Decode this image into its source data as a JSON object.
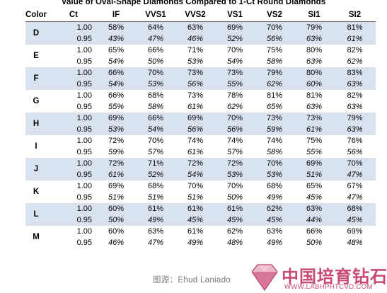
{
  "title": "Value of Oval-Shape Diamonds Compared to 1-Ct Round Diamonds",
  "headers": [
    "Color",
    "Ct",
    "IF",
    "VVS1",
    "VVS2",
    "VS1",
    "VS2",
    "SI1",
    "SI2"
  ],
  "rows": [
    {
      "color": "D",
      "a": {
        "ct": "1.00",
        "vals": [
          "58%",
          "64%",
          "63%",
          "69%",
          "70%",
          "79%",
          "81%"
        ]
      },
      "b": {
        "ct": "0.95",
        "vals": [
          "43%",
          "47%",
          "46%",
          "52%",
          "56%",
          "63%",
          "61%"
        ]
      }
    },
    {
      "color": "E",
      "a": {
        "ct": "1.00",
        "vals": [
          "65%",
          "66%",
          "71%",
          "70%",
          "75%",
          "80%",
          "82%"
        ]
      },
      "b": {
        "ct": "0.95",
        "vals": [
          "54%",
          "50%",
          "53%",
          "54%",
          "58%",
          "63%",
          "62%"
        ]
      }
    },
    {
      "color": "F",
      "a": {
        "ct": "1.00",
        "vals": [
          "66%",
          "70%",
          "73%",
          "73%",
          "79%",
          "80%",
          "83%"
        ]
      },
      "b": {
        "ct": "0.95",
        "vals": [
          "54%",
          "53%",
          "56%",
          "55%",
          "62%",
          "60%",
          "63%"
        ]
      }
    },
    {
      "color": "G",
      "a": {
        "ct": "1.00",
        "vals": [
          "66%",
          "68%",
          "73%",
          "78%",
          "81%",
          "81%",
          "82%"
        ]
      },
      "b": {
        "ct": "0.95",
        "vals": [
          "55%",
          "58%",
          "61%",
          "62%",
          "65%",
          "63%",
          "63%"
        ]
      }
    },
    {
      "color": "H",
      "a": {
        "ct": "1.00",
        "vals": [
          "69%",
          "66%",
          "69%",
          "70%",
          "73%",
          "73%",
          "79%"
        ]
      },
      "b": {
        "ct": "0.95",
        "vals": [
          "53%",
          "54%",
          "56%",
          "56%",
          "59%",
          "61%",
          "63%"
        ]
      }
    },
    {
      "color": "I",
      "a": {
        "ct": "1.00",
        "vals": [
          "72%",
          "70%",
          "74%",
          "74%",
          "74%",
          "75%",
          "76%"
        ]
      },
      "b": {
        "ct": "0.95",
        "vals": [
          "59%",
          "57%",
          "61%",
          "57%",
          "58%",
          "55%",
          "56%"
        ]
      }
    },
    {
      "color": "J",
      "a": {
        "ct": "1.00",
        "vals": [
          "72%",
          "71%",
          "72%",
          "72%",
          "70%",
          "69%",
          "70%"
        ]
      },
      "b": {
        "ct": "0.95",
        "vals": [
          "61%",
          "52%",
          "54%",
          "53%",
          "53%",
          "51%",
          "47%"
        ]
      }
    },
    {
      "color": "K",
      "a": {
        "ct": "1.00",
        "vals": [
          "69%",
          "68%",
          "70%",
          "70%",
          "68%",
          "65%",
          "67%"
        ]
      },
      "b": {
        "ct": "0.95",
        "vals": [
          "51%",
          "51%",
          "51%",
          "50%",
          "49%",
          "45%",
          "47%"
        ]
      }
    },
    {
      "color": "L",
      "a": {
        "ct": "1.00",
        "vals": [
          "60%",
          "61%",
          "61%",
          "61%",
          "62%",
          "63%",
          "68%"
        ]
      },
      "b": {
        "ct": "0.95",
        "vals": [
          "50%",
          "49%",
          "45%",
          "45%",
          "45%",
          "44%",
          "45%"
        ]
      }
    },
    {
      "color": "M",
      "a": {
        "ct": "1.00",
        "vals": [
          "60%",
          "63%",
          "61%",
          "62%",
          "63%",
          "66%",
          "69%"
        ]
      },
      "b": {
        "ct": "0.95",
        "vals": [
          "46%",
          "47%",
          "49%",
          "48%",
          "49%",
          "50%",
          "48%"
        ]
      }
    }
  ],
  "credit": "图源：Ehud Laniado",
  "watermark": {
    "name": "中国培育钻石网",
    "url": "WWW.LABHPHTCVD.COM"
  },
  "colors": {
    "band": "#d9e3ef",
    "watermark": "#c94a76"
  }
}
